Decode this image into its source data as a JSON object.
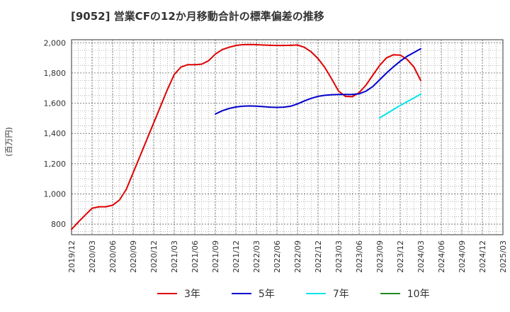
{
  "chart_data": {
    "type": "line",
    "title": "[9052]  営業CFの12か月移動合計の標準偏差の推移",
    "xlabel": "",
    "ylabel": "(百万円)",
    "ylim": [
      730,
      2020
    ],
    "yticks": [
      800,
      1000,
      1200,
      1400,
      1600,
      1800,
      2000
    ],
    "ytick_labels": [
      "800",
      "1,000",
      "1,200",
      "1,400",
      "1,600",
      "1,800",
      "2,000"
    ],
    "xlim": [
      "2019/12",
      "2025/03"
    ],
    "xtick_labels": [
      "2019/12",
      "2020/03",
      "2020/06",
      "2020/09",
      "2020/12",
      "2021/03",
      "2021/06",
      "2021/09",
      "2021/12",
      "2022/03",
      "2022/06",
      "2022/09",
      "2022/12",
      "2023/03",
      "2023/06",
      "2023/09",
      "2023/12",
      "2024/03",
      "2024/06",
      "2024/09",
      "2024/12",
      "2025/03"
    ],
    "grid": true,
    "legend_position": "bottom",
    "series": [
      {
        "name": "3年",
        "color": "#e00000",
        "x": [
          "2019/12",
          "2020/01",
          "2020/02",
          "2020/03",
          "2020/04",
          "2020/05",
          "2020/06",
          "2020/07",
          "2020/08",
          "2020/09",
          "2020/10",
          "2020/11",
          "2020/12",
          "2021/01",
          "2021/02",
          "2021/03",
          "2021/04",
          "2021/05",
          "2021/06",
          "2021/07",
          "2021/08",
          "2021/09",
          "2021/10",
          "2021/11",
          "2021/12",
          "2022/01",
          "2022/02",
          "2022/03",
          "2022/04",
          "2022/05",
          "2022/06",
          "2022/07",
          "2022/08",
          "2022/09",
          "2022/10",
          "2022/11",
          "2022/12",
          "2023/01",
          "2023/02",
          "2023/03",
          "2023/04",
          "2023/05",
          "2023/06",
          "2023/07",
          "2023/08",
          "2023/09",
          "2023/10",
          "2023/11",
          "2023/12",
          "2024/01",
          "2024/02",
          "2024/03"
        ],
        "values": [
          765,
          815,
          860,
          905,
          915,
          915,
          925,
          960,
          1030,
          1140,
          1250,
          1360,
          1470,
          1580,
          1690,
          1790,
          1840,
          1855,
          1855,
          1858,
          1880,
          1925,
          1955,
          1970,
          1982,
          1987,
          1988,
          1987,
          1985,
          1983,
          1982,
          1982,
          1983,
          1985,
          1970,
          1940,
          1895,
          1835,
          1760,
          1680,
          1645,
          1643,
          1670,
          1720,
          1785,
          1850,
          1900,
          1920,
          1918,
          1890,
          1840,
          1750
        ],
        "labels": []
      },
      {
        "name": "5年",
        "color": "#0000cc",
        "x": [
          "2021/09",
          "2021/10",
          "2021/11",
          "2021/12",
          "2022/01",
          "2022/02",
          "2022/03",
          "2022/04",
          "2022/05",
          "2022/06",
          "2022/07",
          "2022/08",
          "2022/09",
          "2022/10",
          "2022/11",
          "2022/12",
          "2023/01",
          "2023/02",
          "2023/03",
          "2023/04",
          "2023/05",
          "2023/06",
          "2023/07",
          "2023/08",
          "2023/09",
          "2023/10",
          "2023/11",
          "2023/12",
          "2024/01",
          "2024/02",
          "2024/03"
        ],
        "values": [
          1528,
          1550,
          1565,
          1575,
          1580,
          1582,
          1580,
          1577,
          1574,
          1572,
          1574,
          1580,
          1595,
          1615,
          1632,
          1645,
          1652,
          1656,
          1658,
          1658,
          1658,
          1662,
          1680,
          1710,
          1755,
          1800,
          1840,
          1878,
          1910,
          1935,
          1960
        ],
        "labels": []
      },
      {
        "name": "7年",
        "color": "#00e5ee",
        "x": [
          "2023/09",
          "2023/10",
          "2023/11",
          "2023/12",
          "2024/01",
          "2024/02",
          "2024/03"
        ],
        "values": [
          1503,
          1530,
          1558,
          1585,
          1610,
          1635,
          1660
        ],
        "labels": []
      },
      {
        "name": "10年",
        "color": "#228b22",
        "x": [],
        "values": [],
        "labels": []
      }
    ]
  }
}
